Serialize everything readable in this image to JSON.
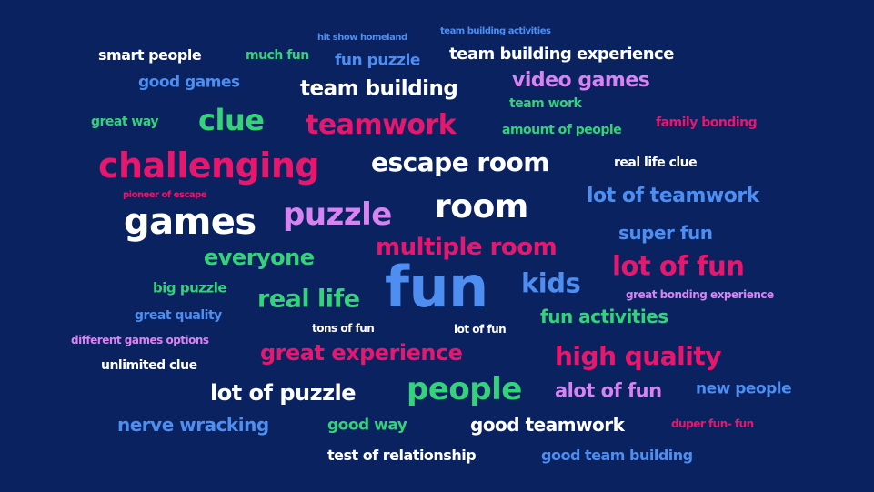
{
  "colors": {
    "background": "#0b2260",
    "white": "#ffffff",
    "pink": "#e8176e",
    "green": "#34d27a",
    "blue": "#4d8ef0",
    "violet": "#d783f2"
  },
  "words": {
    "hit_show_homeland": "hit show homeland",
    "team_building_activities": "team building activities",
    "smart_people": "smart people",
    "much_fun": "much fun",
    "fun_puzzle": "fun puzzle",
    "team_building_experience": "team building experience",
    "good_games": "good games",
    "team_building": "team building",
    "video_games": "video games",
    "team_work": "team work",
    "great_way": "great way",
    "clue": "clue",
    "teamwork": "teamwork",
    "amount_of_people": "amount of people",
    "family_bonding": "family bonding",
    "challenging": "challenging",
    "escape_room": "escape room",
    "real_life_clue": "real life clue",
    "pioneer_of_escape": "pioneer of escape",
    "lot_of_teamwork": "lot of teamwork",
    "games": "games",
    "puzzle": "puzzle",
    "room": "room",
    "super_fun": "super fun",
    "everyone": "everyone",
    "multiple_room": "multiple room",
    "lot_of_fun": "lot of fun",
    "fun": "fun",
    "big_puzzle": "big puzzle",
    "real_life": "real life",
    "kids": "kids",
    "great_bonding_experience": "great bonding experience",
    "great_quality": "great quality",
    "fun_activities": "fun activities",
    "tons_of_fun": "tons of fun",
    "lot_of_fun_small": "lot of fun",
    "different_games_options": "different games options",
    "great_experience": "great experience",
    "high_quality": "high quality",
    "unlimited_clue": "unlimited clue",
    "lot_of_puzzle": "lot of puzzle",
    "people": "people",
    "alot_of_fun": "alot of fun",
    "new_people": "new people",
    "nerve_wracking": "nerve wracking",
    "good_way": "good way",
    "good_teamwork": "good teamwork",
    "duper_fun_fun": "duper fun- fun",
    "test_of_relationship": "test of relationship",
    "good_team_building": "good team building"
  }
}
